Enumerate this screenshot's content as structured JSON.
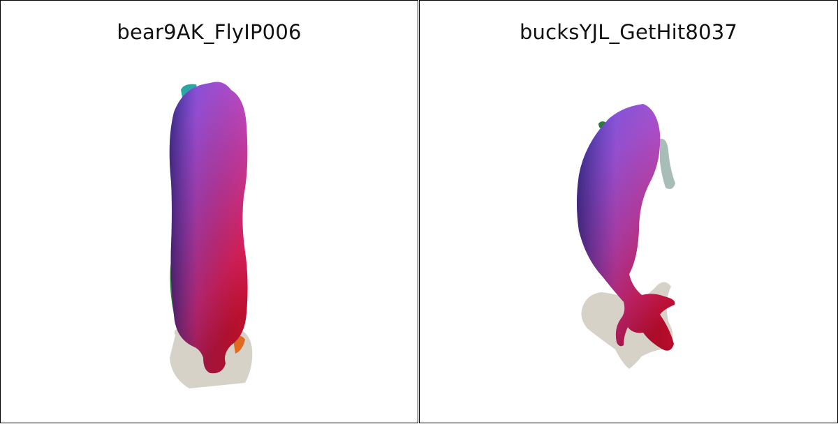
{
  "panels": [
    {
      "title": "bear9AK_FlyIP006"
    },
    {
      "title": "bucksYJL_GetHit8037"
    }
  ]
}
